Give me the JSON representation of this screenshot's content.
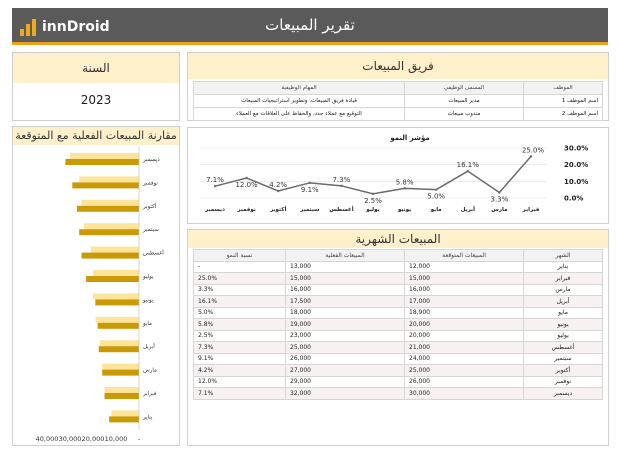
{
  "header": {
    "logo_text": "innDroid",
    "title": "تقرير المبيعات"
  },
  "year": {
    "label": "السنة",
    "value": "2023"
  },
  "team": {
    "title": "فريق المبيعات",
    "columns": [
      "الموظف",
      "المسمى الوظيفي",
      "المهام الوظيفية"
    ],
    "rows": [
      {
        "employee": "اسم الموظف 1",
        "job_title": "مدير المبيعات",
        "tasks": "قيادة فريق المبيعات، وتطوير استراتيجيات المبيعات"
      },
      {
        "employee": "اسم الموظف 2",
        "job_title": "مندوب مبيعات",
        "tasks": "التوقيع مع عملاء جدد، والحفاظ على العلاقات مع العملاء"
      }
    ]
  },
  "comparison_chart": {
    "title": "مقارنة المبيعات الفعلية مع المتوقعة"
  },
  "growth_chart": {
    "title": "مؤشر النمو"
  },
  "monthly": {
    "title": "المبيعات الشهرية",
    "columns": [
      "الشهر",
      "المبيعات المتوقعة",
      "المبيعات الفعلية",
      "نسبة النمو"
    ],
    "rows": [
      [
        "يناير",
        "12,000",
        "13,000",
        "-"
      ],
      [
        "فبراير",
        "15,000",
        "15,000",
        "25.0%"
      ],
      [
        "مارس",
        "16,000",
        "16,000",
        "3.3%"
      ],
      [
        "أبريل",
        "17,000",
        "17,500",
        "16.1%"
      ],
      [
        "مايو",
        "18,900",
        "18,000",
        "5.0%"
      ],
      [
        "يونيو",
        "20,000",
        "19,000",
        "5.8%"
      ],
      [
        "يوليو",
        "20,000",
        "23,000",
        "2.5%"
      ],
      [
        "أغسطس",
        "21,000",
        "25,000",
        "7.3%"
      ],
      [
        "سبتمبر",
        "24,000",
        "26,000",
        "9.1%"
      ],
      [
        "أكتوبر",
        "25,000",
        "27,000",
        "4.2%"
      ],
      [
        "نوفمبر",
        "26,000",
        "29,000",
        "12.0%"
      ],
      [
        "ديسمبر",
        "30,000",
        "32,000",
        "7.1%"
      ]
    ]
  },
  "chart_data": [
    {
      "type": "bar",
      "title": "مقارنة المبيعات الفعلية مع المتوقعة",
      "orientation": "horizontal",
      "categories": [
        "يناير",
        "فبراير",
        "مارس",
        "أبريل",
        "مايو",
        "يونيو",
        "يوليو",
        "أغسطس",
        "سبتمبر",
        "أكتوبر",
        "نوفمبر",
        "ديسمبر"
      ],
      "series": [
        {
          "values": [
            12000,
            15000,
            16000,
            17000,
            18900,
            20000,
            20000,
            21000,
            24000,
            25000,
            26000,
            30000
          ],
          "color": "#fde49a"
        },
        {
          "values": [
            13000,
            15000,
            16000,
            17500,
            18000,
            19000,
            23000,
            25000,
            26000,
            27000,
            29000,
            32000
          ],
          "color": "#c99a06"
        }
      ],
      "tick_labels": [
        "40,000",
        "30,000",
        "20,000",
        "10,000",
        "-"
      ],
      "xlim": [
        0,
        40000
      ],
      "x_reversed": true
    },
    {
      "type": "line",
      "title": "مؤشر النمو",
      "x": [
        "فبراير",
        "مارس",
        "أبريل",
        "مايو",
        "يونيو",
        "يوليو",
        "أغسطس",
        "سبتمبر",
        "أكتوبر",
        "نوفمبر",
        "ديسمبر"
      ],
      "values": [
        25.0,
        3.3,
        16.1,
        5.0,
        5.8,
        2.5,
        7.3,
        9.1,
        4.2,
        12.0,
        7.1
      ],
      "data_labels": [
        "25.0%",
        "3.3%",
        "16.1%",
        "5.0%",
        "5.8%",
        "2.5%",
        "7.3%",
        "9.1%",
        "4.2%",
        "12.0%",
        "7.1%"
      ],
      "y_tick_labels": [
        "30.0%",
        "20.0%",
        "10.0%",
        "0.0%"
      ],
      "ylim": [
        0,
        30
      ],
      "x_reversed": true,
      "grid": true,
      "color": "#6b6b6b"
    }
  ]
}
